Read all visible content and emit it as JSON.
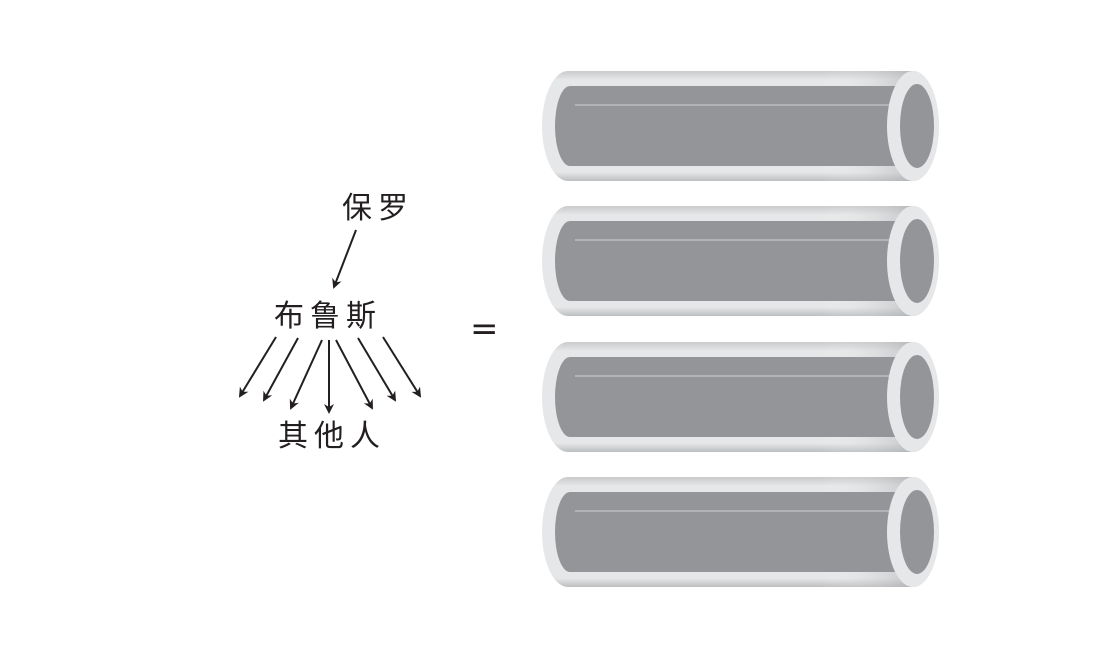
{
  "labels": {
    "top": "保罗",
    "middle": "布鲁斯",
    "bottom": "其他人"
  },
  "equals": "=",
  "pipe_count": 4,
  "colors": {
    "ink": "#231f20",
    "pipe_inner": "#939598",
    "pipe_rim": "#e6e7e8",
    "pipe_shadow": "#bcbec0"
  }
}
